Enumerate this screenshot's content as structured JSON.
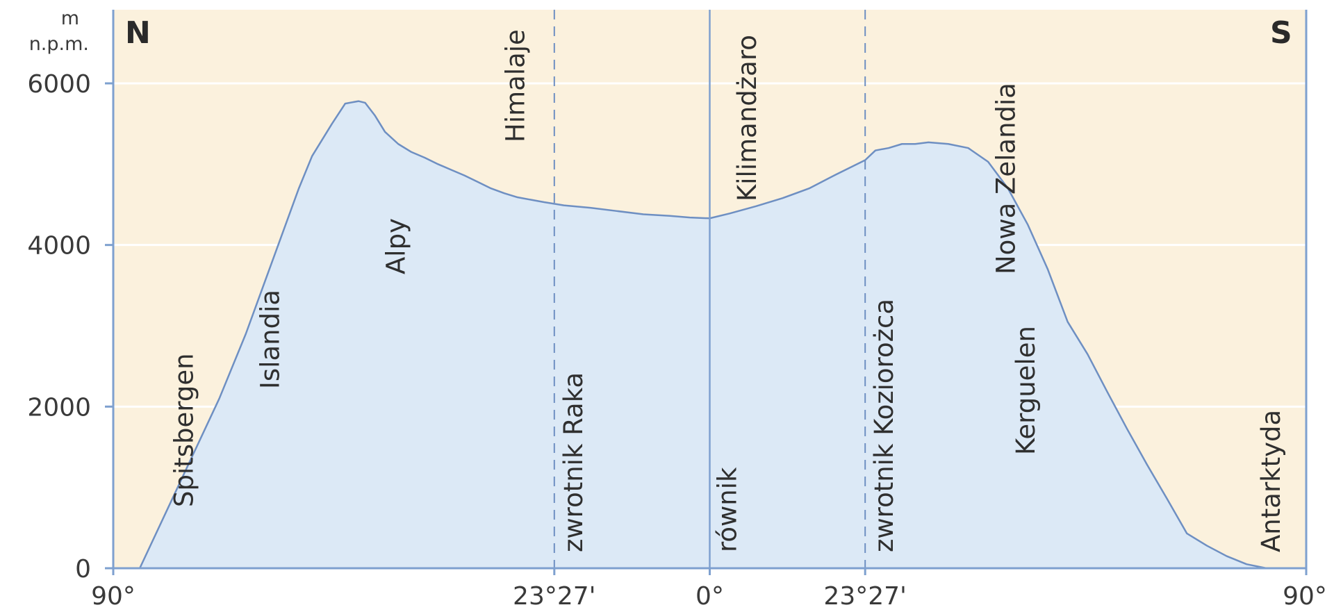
{
  "chart_data": {
    "type": "area",
    "unit_label_top": "m",
    "unit_label_bottom": "n.p.m.",
    "pole_left": "N",
    "pole_right": "S",
    "ylim": [
      0,
      6000
    ],
    "yticks": [
      {
        "value": 0,
        "label": "0"
      },
      {
        "value": 2000,
        "label": "2000"
      },
      {
        "value": 4000,
        "label": "4000"
      },
      {
        "value": 6000,
        "label": "6000"
      }
    ],
    "xlim": [
      90,
      -90
    ],
    "xticks": [
      {
        "value": 90,
        "label": "90°"
      },
      {
        "value": 23.45,
        "label": "23°27'"
      },
      {
        "value": 0,
        "label": "0°"
      },
      {
        "value": -23.45,
        "label": "23°27'"
      },
      {
        "value": -90,
        "label": "90°"
      }
    ],
    "grid": true,
    "colors": {
      "background": "#fbf1dd",
      "fill": "#dce9f6",
      "line": "#6e8fc2",
      "grid": "#ffffff",
      "axis": "#7ea0cf",
      "dash": "#6e8fc2"
    },
    "series": [
      {
        "x": [
          86,
          82,
          78,
          74,
          70,
          66,
          62,
          60,
          57,
          55,
          53,
          52,
          50.5,
          49,
          47,
          45,
          43,
          41,
          39,
          37,
          35,
          33,
          31,
          29,
          27,
          25,
          23.45,
          22,
          18,
          14,
          10,
          6,
          3,
          0,
          -3,
          -7,
          -11,
          -15,
          -19,
          -23.45,
          -25,
          -27,
          -29,
          -31,
          -33,
          -36,
          -39,
          -42,
          -45,
          -48,
          -51,
          -54,
          -57,
          -60,
          -63,
          -66,
          -69,
          -72,
          -75,
          -78,
          -81,
          -84
        ],
        "y": [
          0,
          700,
          1400,
          2100,
          2900,
          3800,
          4700,
          5100,
          5500,
          5750,
          5780,
          5760,
          5600,
          5400,
          5250,
          5150,
          5080,
          5000,
          4930,
          4860,
          4780,
          4700,
          4640,
          4590,
          4560,
          4530,
          4510,
          4490,
          4460,
          4420,
          4380,
          4360,
          4340,
          4330,
          4390,
          4480,
          4580,
          4700,
          4870,
          5050,
          5170,
          5200,
          5250,
          5250,
          5270,
          5250,
          5200,
          5030,
          4700,
          4250,
          3700,
          3050,
          2650,
          2180,
          1720,
          1280,
          860,
          430,
          280,
          150,
          50,
          0
        ]
      }
    ],
    "annotations": [
      {
        "text": "Spitsbergen",
        "x": 78
      },
      {
        "text": "Islandia",
        "x": 65
      },
      {
        "text": "Alpy",
        "x": 46
      },
      {
        "text": "Himalaje",
        "x": 28
      },
      {
        "text": "zwrotnik Raka",
        "x": 23.45
      },
      {
        "text": "Kilimandżaro",
        "x": -3
      },
      {
        "text": "równik",
        "x": 0
      },
      {
        "text": "zwrotnik Koziorożca",
        "x": -23.45
      },
      {
        "text": "Nowa Zelandia",
        "x": -46
      },
      {
        "text": "Kerguelen",
        "x": -49
      },
      {
        "text": "Antarktyda",
        "x": -86
      }
    ]
  }
}
